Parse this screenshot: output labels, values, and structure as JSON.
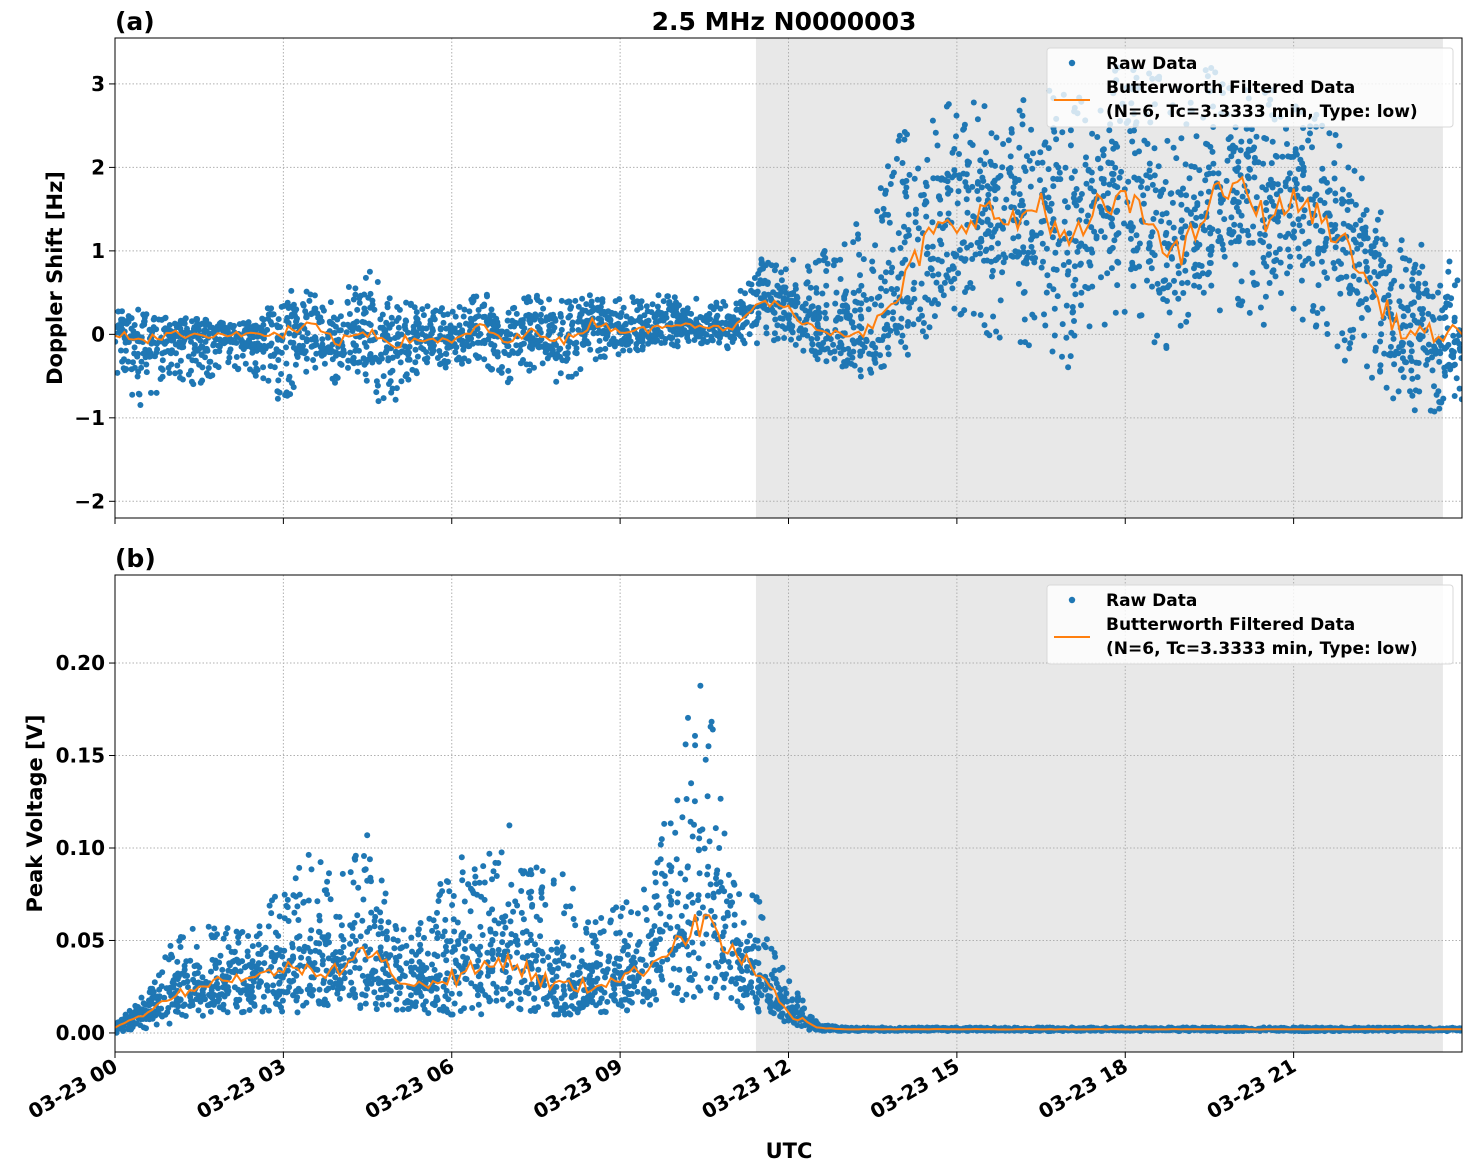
{
  "title": "2.5 MHz N0000003",
  "xlabel": "UTC",
  "x_ticks": [
    "03-23 00",
    "03-23 03",
    "03-23 06",
    "03-23 09",
    "03-23 12",
    "03-23 15",
    "03-23 18",
    "03-23 21"
  ],
  "x_range_hours": [
    0,
    24
  ],
  "shaded_region_hours": [
    11.42,
    23.66
  ],
  "colors": {
    "raw": "#1f77b4",
    "filtered": "#ff7f0e",
    "shade": "#e8e8e8",
    "grid": "#b0b0b0"
  },
  "legend": {
    "raw": "Raw Data",
    "filtered_line1": "Butterworth Filtered Data",
    "filtered_line2": "(N=6, Tc=3.3333 min, Type: low)",
    "placement": "top-right"
  },
  "chart_data": [
    {
      "type": "scatter+line",
      "panel_label": "(a)",
      "ylabel": "Doppler Shift [Hz]",
      "ylim": [
        -2.2,
        3.55
      ],
      "y_ticks": [
        "3",
        "2",
        "1",
        "0",
        "−1",
        "−2"
      ],
      "y_tick_values": [
        3,
        2,
        1,
        0,
        -1,
        -2
      ],
      "grid": true,
      "x_hours": [
        0,
        0.5,
        1,
        1.5,
        2,
        2.5,
        3,
        3.5,
        4,
        4.5,
        5,
        5.5,
        6,
        6.5,
        7,
        7.5,
        8,
        8.5,
        9,
        9.5,
        10,
        10.5,
        11,
        11.5,
        12,
        12.5,
        13,
        13.5,
        14,
        14.5,
        15,
        15.5,
        16,
        16.5,
        17,
        17.5,
        18,
        18.5,
        19,
        19.5,
        20,
        20.5,
        21,
        21.5,
        22,
        22.5,
        23,
        23.5,
        24
      ],
      "filtered": [
        0,
        -0.05,
        0,
        0,
        0,
        0,
        0,
        0.1,
        -0.1,
        0.05,
        -0.1,
        -0.05,
        -0.1,
        0.1,
        -0.1,
        0.05,
        -0.1,
        0.15,
        0.05,
        0.05,
        0.15,
        0.1,
        0.05,
        0.4,
        0.3,
        0.05,
        0.05,
        0.05,
        0.5,
        1.2,
        1.3,
        1.5,
        1.3,
        1.6,
        1.0,
        1.5,
        1.6,
        1.3,
        0.9,
        1.6,
        1.8,
        1.4,
        1.6,
        1.4,
        1.0,
        0.4,
        0.0,
        0.0,
        0.0
      ],
      "raw_low": [
        -0.5,
        -0.9,
        -0.6,
        -0.6,
        -0.4,
        -0.5,
        -0.85,
        -0.5,
        -0.6,
        -0.8,
        -0.8,
        -0.4,
        -0.4,
        -0.3,
        -0.6,
        -0.4,
        -0.7,
        -0.3,
        -0.3,
        -0.2,
        -0.2,
        -0.1,
        -0.2,
        -0.1,
        -0.1,
        -0.3,
        -0.4,
        -0.6,
        -0.5,
        0,
        0.2,
        0,
        -0.2,
        -0.3,
        -0.5,
        0,
        0.2,
        -0.1,
        -0.3,
        0.2,
        0.3,
        0.1,
        0.2,
        0,
        -0.4,
        -0.7,
        -1.0,
        -1.0,
        -0.9
      ],
      "raw_high": [
        0.3,
        0.3,
        0.2,
        0.2,
        0.15,
        0.15,
        0.6,
        0.5,
        0.5,
        0.8,
        0.4,
        0.35,
        0.3,
        0.5,
        0.4,
        0.5,
        0.4,
        0.5,
        0.45,
        0.45,
        0.5,
        0.4,
        0.4,
        0.9,
        0.9,
        0.9,
        1.3,
        1.5,
        2.5,
        2.7,
        2.8,
        2.8,
        2.9,
        3.0,
        2.9,
        3.2,
        3.2,
        3.2,
        3.0,
        3.2,
        3.1,
        3.0,
        2.8,
        2.6,
        2.2,
        1.8,
        1.2,
        1.0,
        0.8
      ]
    },
    {
      "type": "scatter+line",
      "panel_label": "(b)",
      "ylabel": "Peak Voltage [V]",
      "ylim": [
        -0.0103,
        0.2476
      ],
      "y_ticks": [
        "0.20",
        "0.15",
        "0.10",
        "0.05",
        "0.00"
      ],
      "y_tick_values": [
        0.2,
        0.15,
        0.1,
        0.05,
        0
      ],
      "grid": true,
      "x_hours": [
        0,
        0.5,
        1,
        1.5,
        2,
        2.5,
        3,
        3.5,
        4,
        4.5,
        5,
        5.5,
        6,
        6.5,
        7,
        7.5,
        8,
        8.5,
        9,
        9.5,
        10,
        10.5,
        11,
        11.5,
        12,
        12.5,
        13,
        13.5,
        14,
        14.5,
        15,
        15.5,
        16,
        16.5,
        17,
        17.5,
        18,
        18.5,
        19,
        19.5,
        20,
        20.5,
        21,
        21.5,
        22,
        22.5,
        23,
        23.5,
        24
      ],
      "filtered": [
        0.003,
        0.01,
        0.02,
        0.025,
        0.03,
        0.03,
        0.035,
        0.035,
        0.035,
        0.045,
        0.03,
        0.025,
        0.03,
        0.035,
        0.04,
        0.03,
        0.025,
        0.025,
        0.03,
        0.035,
        0.05,
        0.06,
        0.045,
        0.03,
        0.01,
        0.003,
        0.002,
        0.002,
        0.002,
        0.002,
        0.002,
        0.002,
        0.002,
        0.002,
        0.002,
        0.002,
        0.002,
        0.002,
        0.002,
        0.002,
        0.002,
        0.002,
        0.002,
        0.002,
        0.002,
        0.002,
        0.002,
        0.002,
        0.002
      ],
      "raw_low": [
        0,
        0.002,
        0.005,
        0.008,
        0.01,
        0.01,
        0.01,
        0.01,
        0.012,
        0.012,
        0.01,
        0.01,
        0.01,
        0.01,
        0.012,
        0.01,
        0.01,
        0.01,
        0.01,
        0.01,
        0.015,
        0.015,
        0.015,
        0.01,
        0.003,
        0.001,
        0.001,
        0.001,
        0.001,
        0.001,
        0.001,
        0.001,
        0.001,
        0.001,
        0.001,
        0.001,
        0.001,
        0.001,
        0.001,
        0.001,
        0.001,
        0.001,
        0.001,
        0.001,
        0.001,
        0.001,
        0.001,
        0.001,
        0.001
      ],
      "raw_high": [
        0.006,
        0.02,
        0.05,
        0.06,
        0.06,
        0.06,
        0.08,
        0.1,
        0.09,
        0.11,
        0.06,
        0.06,
        0.1,
        0.09,
        0.12,
        0.09,
        0.09,
        0.06,
        0.07,
        0.08,
        0.15,
        0.2,
        0.1,
        0.07,
        0.03,
        0.006,
        0.003,
        0.003,
        0.003,
        0.003,
        0.003,
        0.003,
        0.003,
        0.003,
        0.003,
        0.003,
        0.003,
        0.003,
        0.003,
        0.003,
        0.003,
        0.003,
        0.003,
        0.003,
        0.003,
        0.003,
        0.003,
        0.003,
        0.003
      ]
    }
  ]
}
